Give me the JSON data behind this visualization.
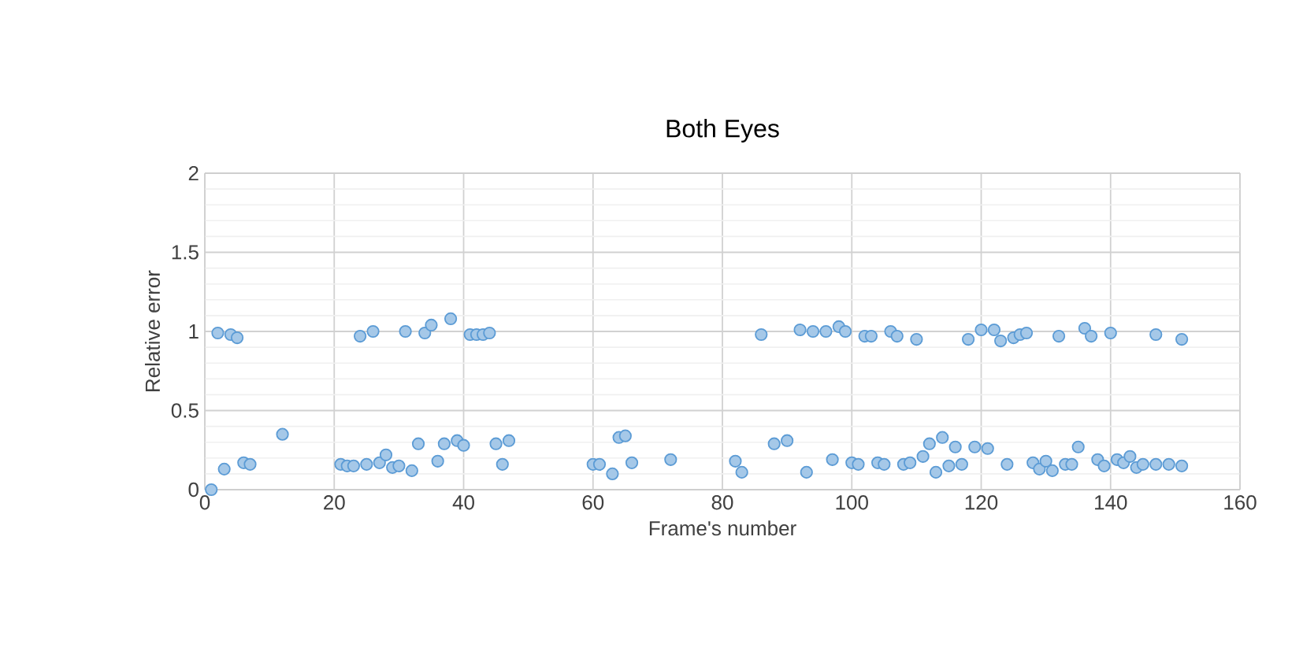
{
  "chart_data": {
    "type": "scatter",
    "title": "Both Eyes",
    "xlabel": "Frame's number",
    "ylabel": "Relative error",
    "xlim": [
      0,
      160
    ],
    "xticks": [
      0,
      20,
      40,
      60,
      80,
      100,
      120,
      140,
      160
    ],
    "ylim": [
      0,
      2
    ],
    "yticks": [
      0,
      0.5,
      1,
      1.5,
      2
    ],
    "grid": true,
    "marker": "circle",
    "series": [
      {
        "color": "#5b9bd5",
        "x": [
          1,
          3,
          6,
          7,
          12,
          21,
          22,
          23,
          25,
          27,
          28,
          29,
          30,
          32,
          33,
          36,
          37,
          39,
          40,
          45,
          46,
          47,
          60,
          61,
          63,
          64,
          65,
          66,
          72,
          82,
          83,
          88,
          90,
          93,
          97,
          100,
          101,
          104,
          105,
          108,
          109,
          111,
          112,
          113,
          114,
          115,
          116,
          117,
          119,
          121,
          124,
          128,
          129,
          130,
          131,
          133,
          134,
          135,
          138,
          139,
          141,
          142,
          143,
          144,
          145,
          147,
          149,
          151,
          2,
          4,
          5,
          24,
          26,
          31,
          34,
          35,
          38,
          41,
          42,
          43,
          44,
          86,
          92,
          94,
          96,
          98,
          99,
          102,
          103,
          106,
          107,
          110,
          118,
          120,
          122,
          123,
          125,
          126,
          127,
          132,
          136,
          137,
          140,
          147,
          151
        ],
        "values": [
          0,
          0.13,
          0.17,
          0.16,
          0.35,
          0.16,
          0.15,
          0.15,
          0.16,
          0.17,
          0.22,
          0.14,
          0.15,
          0.12,
          0.29,
          0.18,
          0.29,
          0.31,
          0.28,
          0.29,
          0.16,
          0.31,
          0.16,
          0.16,
          0.1,
          0.33,
          0.34,
          0.17,
          0.19,
          0.18,
          0.11,
          0.29,
          0.31,
          0.11,
          0.19,
          0.17,
          0.16,
          0.17,
          0.16,
          0.16,
          0.17,
          0.21,
          0.29,
          0.11,
          0.33,
          0.15,
          0.27,
          0.16,
          0.27,
          0.26,
          0.16,
          0.17,
          0.13,
          0.18,
          0.12,
          0.16,
          0.16,
          0.27,
          0.19,
          0.15,
          0.19,
          0.17,
          0.21,
          0.14,
          0.16,
          0.16,
          0.16,
          0.15,
          0.99,
          0.98,
          0.96,
          0.97,
          1.0,
          1.0,
          0.99,
          1.04,
          1.08,
          0.98,
          0.98,
          0.98,
          0.99,
          0.98,
          1.01,
          1.0,
          1.0,
          1.03,
          1.0,
          0.97,
          0.97,
          1.0,
          0.97,
          0.95,
          0.95,
          1.01,
          1.01,
          0.94,
          0.96,
          0.98,
          0.99,
          0.97,
          1.02,
          0.97,
          0.99,
          0.98,
          0.95
        ]
      }
    ]
  }
}
